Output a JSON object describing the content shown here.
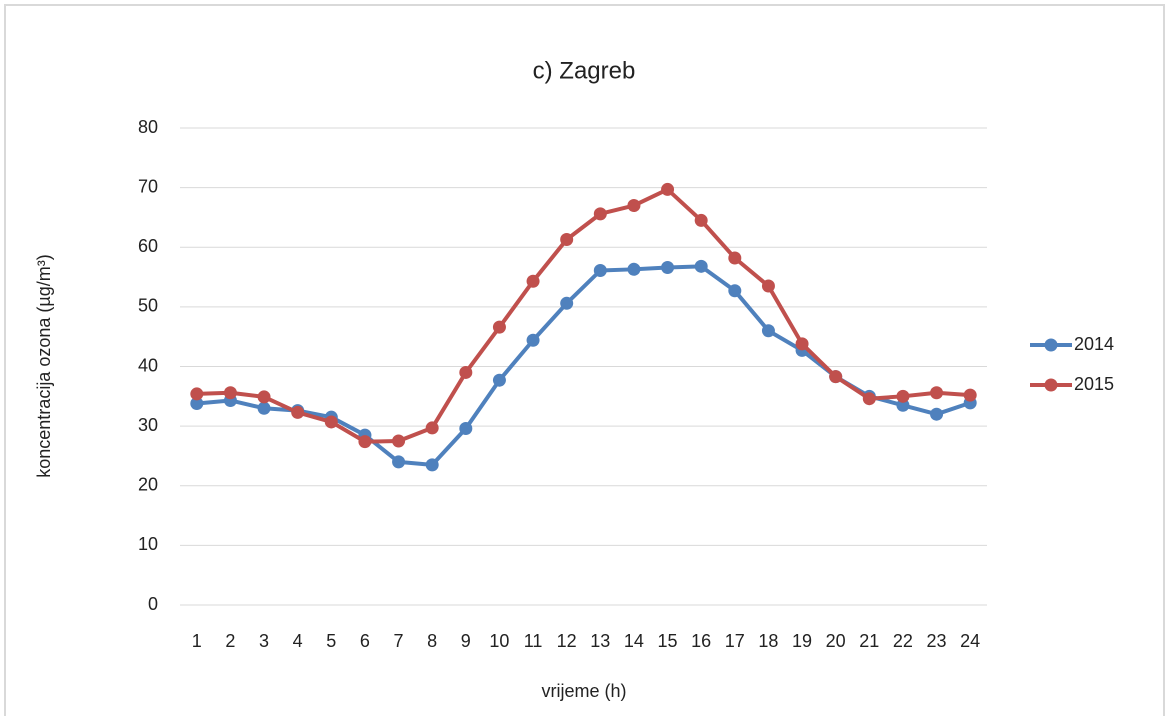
{
  "chart_data": {
    "type": "line",
    "title": "c) Zagreb",
    "x_label": "vrijeme (h)",
    "y_label": "koncentracija ozona (µg/m³)",
    "categories": [
      "1",
      "2",
      "3",
      "4",
      "5",
      "6",
      "7",
      "8",
      "9",
      "10",
      "11",
      "12",
      "13",
      "14",
      "15",
      "16",
      "17",
      "18",
      "19",
      "20",
      "21",
      "22",
      "23",
      "24"
    ],
    "series": [
      {
        "name": "2014",
        "color": "#4f81bd",
        "values": [
          33.8,
          34.3,
          33.0,
          32.6,
          31.5,
          28.5,
          24.0,
          23.5,
          29.6,
          37.7,
          44.4,
          50.6,
          56.1,
          56.3,
          56.6,
          56.8,
          52.7,
          46.0,
          42.7,
          38.3,
          35.0,
          33.5,
          32.0,
          33.9
        ]
      },
      {
        "name": "2015",
        "color": "#c0504d",
        "values": [
          35.4,
          35.6,
          34.9,
          32.3,
          30.7,
          27.4,
          27.5,
          29.7,
          39.0,
          46.6,
          54.3,
          61.3,
          65.6,
          67.0,
          69.7,
          64.5,
          58.2,
          53.5,
          43.8,
          38.3,
          34.6,
          35.0,
          35.6,
          35.2
        ]
      }
    ],
    "ylim": [
      0,
      80
    ],
    "yticks": [
      0,
      10,
      20,
      30,
      40,
      50,
      60,
      70,
      80
    ],
    "grid": true,
    "legend": "right"
  }
}
